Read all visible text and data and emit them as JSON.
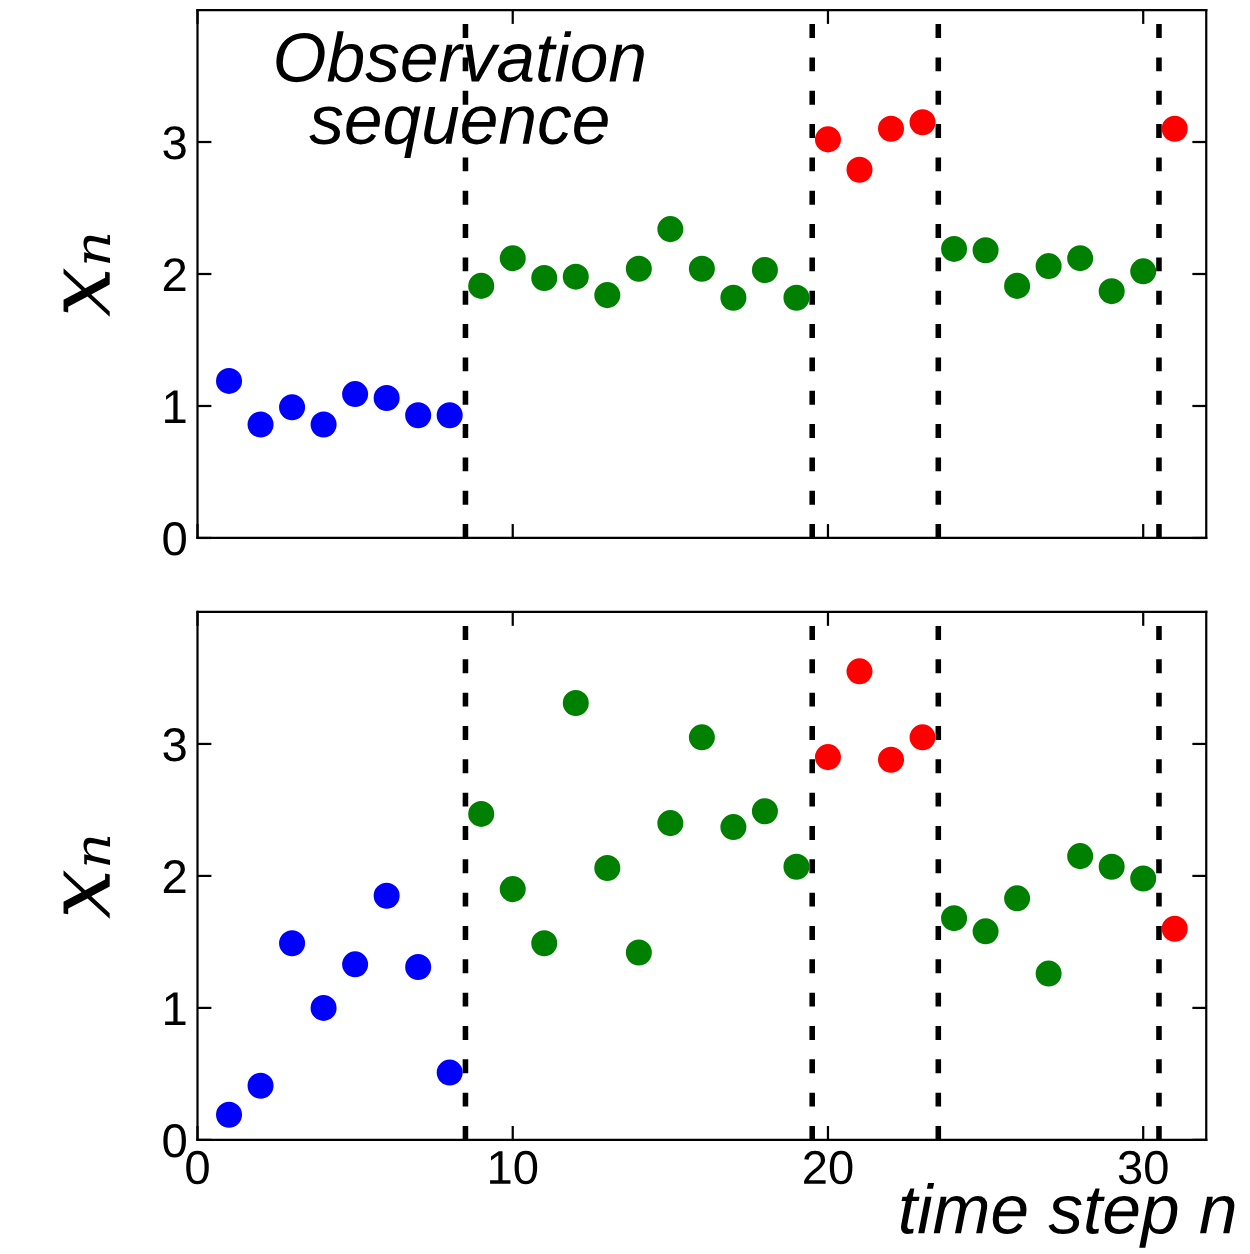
{
  "chart_data": [
    {
      "type": "scatter",
      "ylabel": "xₙ",
      "annotations": [
        "Observation sequence"
      ],
      "xlim": [
        0,
        32
      ],
      "xticks": [
        {
          "value": 0,
          "label": null
        },
        {
          "value": 10,
          "label": null
        },
        {
          "value": 20,
          "label": null
        },
        {
          "value": 30,
          "label": null
        }
      ],
      "ylim": [
        0,
        4
      ],
      "yticks": [
        0,
        1,
        2,
        3
      ],
      "tick_labels": "y",
      "marker": "circle",
      "grid": false,
      "legend": false,
      "ref_lines": [
        {
          "axis": "x",
          "value": 8.5,
          "color": "#000000",
          "line_style": "dotted"
        },
        {
          "axis": "x",
          "value": 19.5,
          "color": "#000000",
          "line_style": "dotted"
        },
        {
          "axis": "x",
          "value": 23.5,
          "color": "#000000",
          "line_style": "dotted"
        },
        {
          "axis": "x",
          "value": 30.5,
          "color": "#000000",
          "line_style": "dotted"
        }
      ],
      "series": [
        {
          "color": "#0000ff",
          "x": [
            1,
            2,
            3,
            4,
            5,
            6,
            7,
            8
          ],
          "values": [
            1.19,
            0.86,
            0.99,
            0.86,
            1.09,
            1.06,
            0.93,
            0.93
          ]
        },
        {
          "color": "#008000",
          "x": [
            9,
            10,
            11,
            12,
            13,
            14,
            15,
            16,
            17,
            18,
            19,
            24,
            25,
            26,
            27,
            28,
            29,
            30
          ],
          "values": [
            1.91,
            2.12,
            1.97,
            1.98,
            1.84,
            2.04,
            2.34,
            2.04,
            1.82,
            2.03,
            1.82,
            2.19,
            2.18,
            1.91,
            2.06,
            2.12,
            1.87,
            2.02
          ]
        },
        {
          "color": "#ff0000",
          "x": [
            20,
            21,
            22,
            23,
            31
          ],
          "values": [
            3.02,
            2.79,
            3.1,
            3.15,
            3.1
          ]
        }
      ]
    },
    {
      "type": "scatter",
      "ylabel": "xₙ",
      "xlabel": "time step n",
      "xlim": [
        0,
        32
      ],
      "xticks": [
        0,
        10,
        20,
        30
      ],
      "ylim": [
        0,
        4
      ],
      "yticks": [
        0,
        1,
        2,
        3
      ],
      "marker": "circle",
      "grid": false,
      "legend": false,
      "ref_lines": [
        {
          "axis": "x",
          "value": 8.5,
          "color": "#000000",
          "line_style": "dotted"
        },
        {
          "axis": "x",
          "value": 19.5,
          "color": "#000000",
          "line_style": "dotted"
        },
        {
          "axis": "x",
          "value": 23.5,
          "color": "#000000",
          "line_style": "dotted"
        },
        {
          "axis": "x",
          "value": 30.5,
          "color": "#000000",
          "line_style": "dotted"
        }
      ],
      "series": [
        {
          "color": "#0000ff",
          "x": [
            1,
            2,
            3,
            4,
            5,
            6,
            7,
            8
          ],
          "values": [
            0.19,
            0.41,
            1.49,
            1.0,
            1.33,
            1.85,
            1.31,
            0.51
          ]
        },
        {
          "color": "#008000",
          "x": [
            9,
            10,
            11,
            12,
            13,
            14,
            15,
            16,
            17,
            18,
            19,
            24,
            25,
            26,
            27,
            28,
            29,
            30
          ],
          "values": [
            2.47,
            1.9,
            1.49,
            3.31,
            2.06,
            1.42,
            2.4,
            3.05,
            2.37,
            2.49,
            2.07,
            1.68,
            1.58,
            1.83,
            1.26,
            2.15,
            2.07,
            1.98
          ]
        },
        {
          "color": "#ff0000",
          "x": [
            20,
            21,
            22,
            23,
            31
          ],
          "values": [
            2.9,
            3.55,
            2.88,
            3.05,
            1.6
          ]
        }
      ]
    }
  ]
}
